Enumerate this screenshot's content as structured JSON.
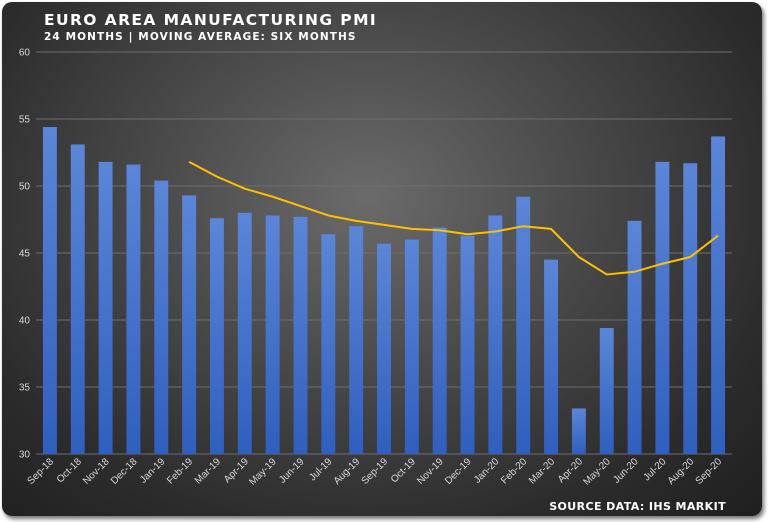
{
  "header": {
    "title": "EURO AREA MANUFACTURING PMI",
    "subtitle": "24 MONTHS | MOVING AVERAGE: SIX MONTHS"
  },
  "footer": {
    "source": "SOURCE DATA: IHS MARKIT"
  },
  "colors": {
    "bar_top": "#5b86d8",
    "bar_bottom": "#2f5fbf",
    "line": "#ffc000",
    "grid": "#6e6e6e"
  },
  "chart_data": {
    "type": "bar",
    "title": "EURO AREA MANUFACTURING PMI",
    "subtitle": "24 MONTHS | MOVING AVERAGE: SIX MONTHS",
    "xlabel": "",
    "ylabel": "",
    "ylim": [
      30,
      60
    ],
    "yticks": [
      30,
      35,
      40,
      45,
      50,
      55,
      60
    ],
    "grid": true,
    "categories": [
      "Sep-18",
      "Oct-18",
      "Nov-18",
      "Dec-18",
      "Jan-19",
      "Feb-19",
      "Mar-19",
      "Apr-19",
      "May-19",
      "Jun-19",
      "Jul-19",
      "Aug-19",
      "Sep-19",
      "Oct-19",
      "Nov-19",
      "Dec-19",
      "Jan-20",
      "Feb-20",
      "Mar-20",
      "Apr-20",
      "May-20",
      "Jun-20",
      "Jul-20",
      "Aug-20",
      "Sep-20"
    ],
    "series": [
      {
        "type": "bar",
        "values": [
          54.4,
          53.1,
          51.8,
          51.6,
          50.4,
          49.3,
          47.6,
          48.0,
          47.8,
          47.7,
          46.4,
          47.0,
          45.7,
          46.0,
          46.9,
          46.3,
          47.8,
          49.2,
          44.5,
          33.4,
          39.4,
          47.4,
          51.8,
          51.7,
          53.7
        ]
      },
      {
        "type": "line",
        "values": [
          null,
          null,
          null,
          null,
          null,
          51.8,
          50.7,
          49.8,
          49.2,
          48.5,
          47.8,
          47.4,
          47.1,
          46.8,
          46.7,
          46.4,
          46.6,
          47.0,
          46.8,
          44.7,
          43.4,
          43.6,
          44.2,
          44.7,
          46.3
        ]
      }
    ]
  }
}
